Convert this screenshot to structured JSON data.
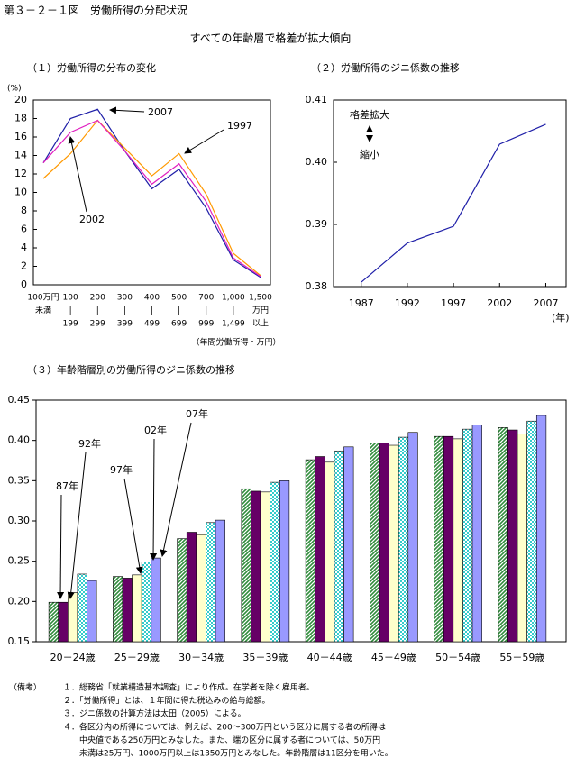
{
  "title": "第３－２－１図　労働所得の分配状況",
  "subtitle": "すべての年齢層で格差が拡大傾向",
  "chart_data": [
    {
      "type": "line",
      "title": "（１）労働所得の分布の変化",
      "xlabel": "（年間労働所得・万円）",
      "ylabel": "(%)",
      "categories": [
        [
          "100万円",
          "未満"
        ],
        [
          "100",
          "|",
          "199"
        ],
        [
          "200",
          "|",
          "299"
        ],
        [
          "300",
          "|",
          "399"
        ],
        [
          "400",
          "|",
          "499"
        ],
        [
          "500",
          "|",
          "699"
        ],
        [
          "700",
          "|",
          "999"
        ],
        [
          "1,000",
          "|",
          "1,499"
        ],
        [
          "1,500",
          "万円",
          "以上"
        ]
      ],
      "series": [
        {
          "name": "2007",
          "color": "#1f1fa8",
          "values": [
            13.2,
            18.0,
            19.0,
            14.5,
            10.4,
            12.5,
            8.3,
            2.7,
            0.8
          ]
        },
        {
          "name": "1997",
          "color": "#ff9900",
          "values": [
            11.5,
            14.2,
            17.8,
            14.8,
            11.8,
            14.2,
            9.8,
            3.4,
            1.0
          ]
        },
        {
          "name": "2002",
          "color": "#e020c0",
          "values": [
            13.2,
            16.5,
            17.8,
            14.5,
            10.9,
            13.1,
            9.0,
            2.9,
            0.9
          ]
        }
      ],
      "ylim": [
        0,
        20
      ],
      "yticks": [
        0,
        2,
        4,
        6,
        8,
        10,
        12,
        14,
        16,
        18,
        20
      ]
    },
    {
      "type": "line",
      "title": "（２）労働所得のジニ係数の推移",
      "xlabel": "(年)",
      "x": [
        1987,
        1992,
        1997,
        2002,
        2007
      ],
      "series": [
        {
          "color": "#1f1fa8",
          "values": [
            0.3807,
            0.387,
            0.3897,
            0.4029,
            0.4061
          ]
        }
      ],
      "xlim": [
        1984,
        2009.2
      ],
      "xticks": [
        1987,
        1992,
        1997,
        2002,
        2007
      ],
      "ylim": [
        0.38,
        0.41
      ],
      "yticks": [
        {
          "value": 0.38,
          "label": "0.38"
        },
        {
          "value": 0.39,
          "label": "0.39"
        },
        {
          "value": 0.4,
          "label": "0.40"
        },
        {
          "value": 0.41,
          "label": "0.41"
        }
      ],
      "annotations": [
        "格差拡大",
        "縮小"
      ]
    },
    {
      "type": "bar",
      "title": "（３）年齢階層別の労働所得のジニ係数の推移",
      "categories": [
        "20－24歳",
        "25－29歳",
        "30－34歳",
        "35－39歳",
        "40－44歳",
        "45－49歳",
        "50－54歳",
        "55－59歳"
      ],
      "series": [
        {
          "name": "87年",
          "color": "#2e8b3a",
          "pattern": "hatch",
          "values": [
            0.199,
            0.231,
            0.278,
            0.34,
            0.376,
            0.397,
            0.405,
            0.416
          ]
        },
        {
          "name": "92年",
          "color": "#660066",
          "values": [
            0.199,
            0.229,
            0.286,
            0.337,
            0.38,
            0.397,
            0.405,
            0.413
          ]
        },
        {
          "name": "97年",
          "color": "#ffffcc",
          "values": [
            0.211,
            0.233,
            0.283,
            0.336,
            0.373,
            0.394,
            0.402,
            0.408
          ]
        },
        {
          "name": "02年",
          "color": "#33cccc",
          "pattern": "checker",
          "values": [
            0.234,
            0.249,
            0.298,
            0.348,
            0.387,
            0.404,
            0.414,
            0.424
          ]
        },
        {
          "name": "07年",
          "color": "#9999ff",
          "values": [
            0.226,
            0.254,
            0.301,
            0.35,
            0.392,
            0.41,
            0.419,
            0.431
          ]
        }
      ],
      "ylim": [
        0.15,
        0.45
      ],
      "yticks": [
        {
          "value": 0.15,
          "label": "0.15"
        },
        {
          "value": 0.2,
          "label": "0.20"
        },
        {
          "value": 0.25,
          "label": "0.25"
        },
        {
          "value": 0.3,
          "label": "0.30"
        },
        {
          "value": 0.35,
          "label": "0.35"
        },
        {
          "value": 0.4,
          "label": "0.40"
        },
        {
          "value": 0.45,
          "label": "0.45"
        }
      ]
    }
  ],
  "notes": {
    "label": "（備考）",
    "lines": [
      "１．総務省「就業構造基本調査」により作成。在学者を除く雇用者。",
      "２．「労働所得」とは、１年間に得た税込みの給与総額。",
      "３．ジニ係数の計算方法は太田（2005）による。",
      "４．各区分内の所得については、例えば、200～300万円という区分に属する者の所得は",
      "　　中央値である250万円とみなした。また、端の区分に属する者については、50万円",
      "　　未満は25万円、1000万円以上は1350万円とみなした。年齢階層は11区分を用いた。"
    ]
  }
}
